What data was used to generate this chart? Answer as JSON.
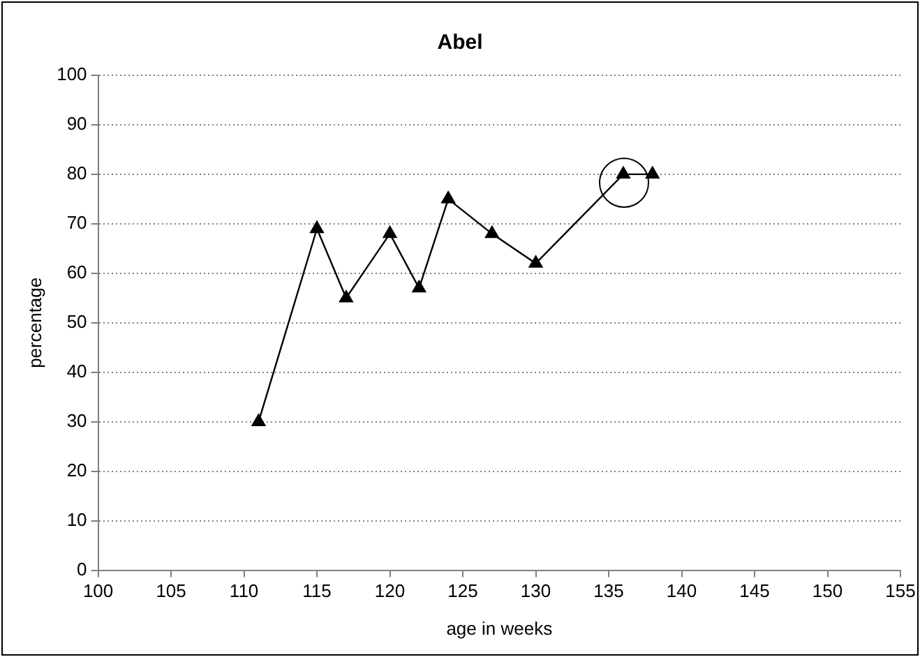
{
  "chart_data": {
    "type": "line",
    "title": "Abel",
    "xlabel": "age in weeks",
    "ylabel": "percentage",
    "x": [
      111,
      115,
      117,
      120,
      122,
      124,
      127,
      130,
      136,
      138
    ],
    "series": [
      {
        "color": "#000000",
        "values": [
          30,
          69,
          55,
          68,
          57,
          75,
          68,
          62,
          80,
          80
        ]
      }
    ],
    "xlim": [
      100,
      155
    ],
    "xticks": [
      100,
      105,
      110,
      115,
      120,
      125,
      130,
      135,
      140,
      145,
      150,
      155
    ],
    "ylim": [
      0,
      100
    ],
    "yticks": [
      0,
      10,
      20,
      30,
      40,
      50,
      60,
      70,
      80,
      90,
      100
    ],
    "grid": "y",
    "legend": false,
    "marker": "triangle",
    "line_style": "solid"
  }
}
